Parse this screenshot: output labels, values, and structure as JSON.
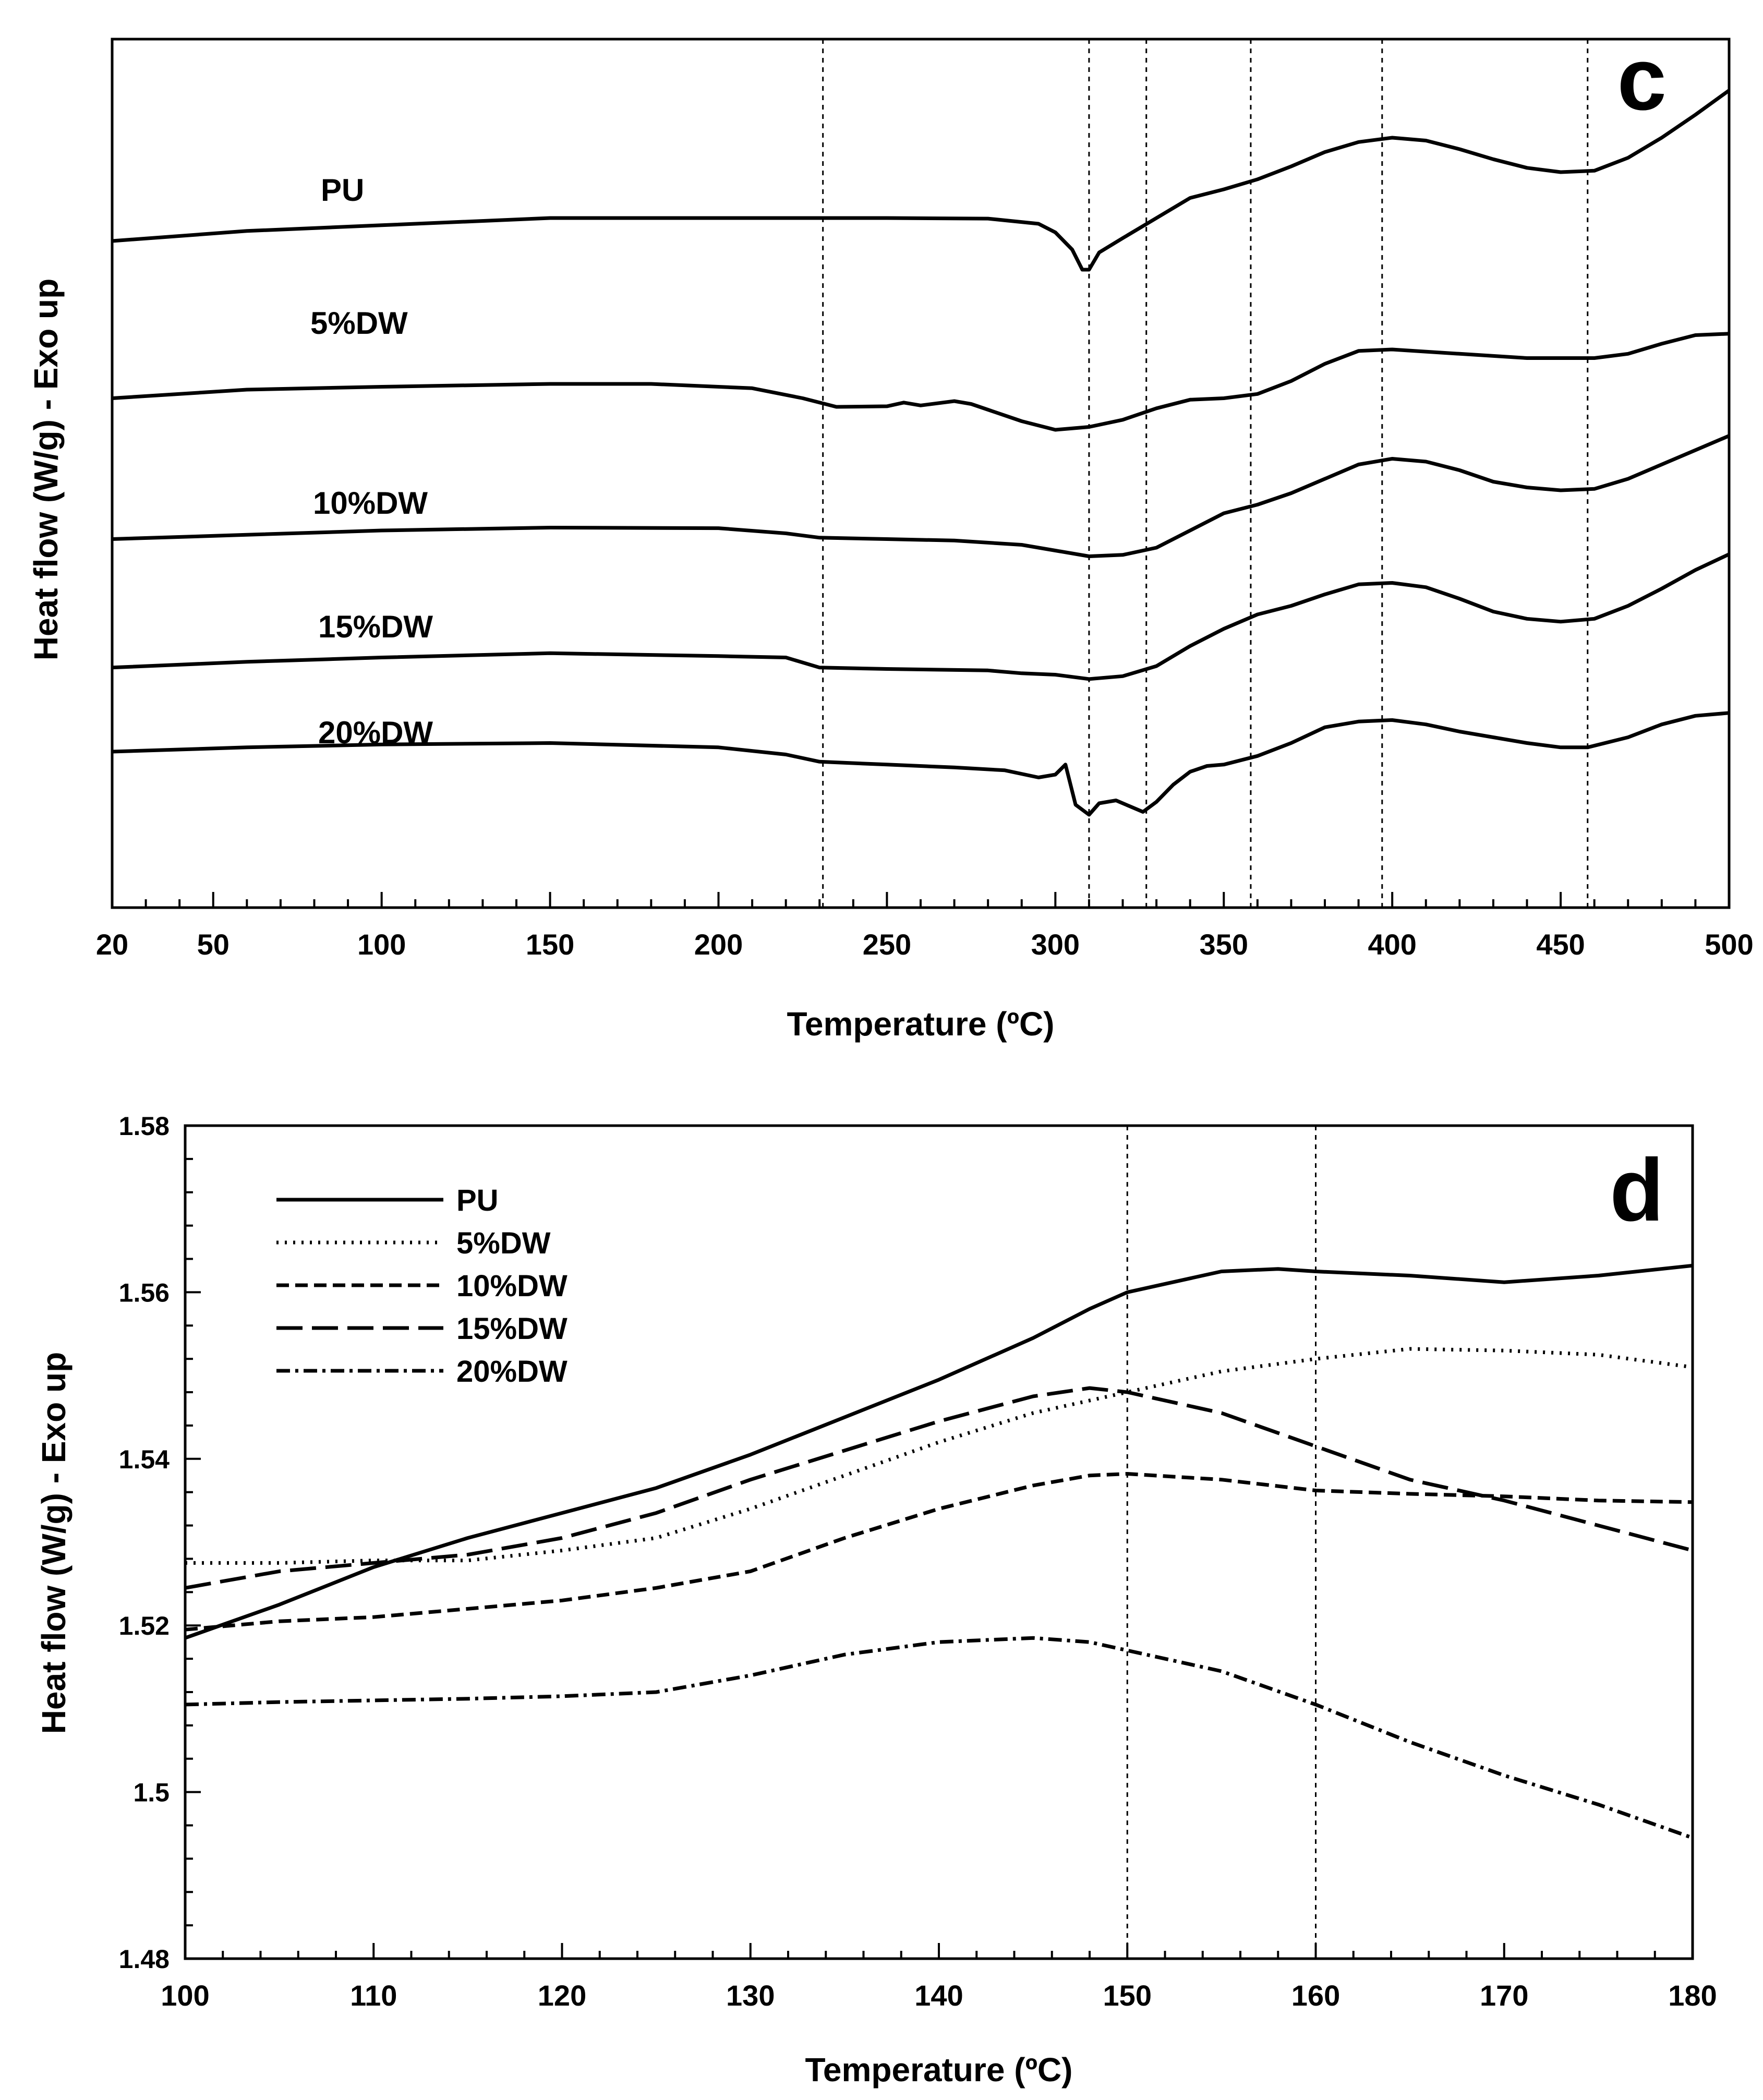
{
  "chart_data": [
    {
      "type": "line",
      "panel_label": "c",
      "xlabel": "Temperature (ºC)",
      "ylabel": "Heat flow (W/g) - Exo up",
      "xlim": [
        20,
        500
      ],
      "x_ticks": [
        20,
        50,
        100,
        150,
        200,
        250,
        300,
        350,
        400,
        450,
        500
      ],
      "y_ticks_labeled": false,
      "reference_lines_x": [
        231,
        310,
        327,
        358,
        397,
        458
      ],
      "series": [
        {
          "name": "PU",
          "curve_label": "PU",
          "style": "solid",
          "points": [
            [
              20,
              0.6
            ],
            [
              60,
              0.95
            ],
            [
              100,
              1.15
            ],
            [
              150,
              1.4
            ],
            [
              200,
              1.4
            ],
            [
              250,
              1.4
            ],
            [
              280,
              1.38
            ],
            [
              295,
              1.2
            ],
            [
              300,
              0.9
            ],
            [
              305,
              0.3
            ],
            [
              308,
              -0.4
            ],
            [
              310,
              -0.4
            ],
            [
              313,
              0.2
            ],
            [
              320,
              0.7
            ],
            [
              330,
              1.4
            ],
            [
              340,
              2.1
            ],
            [
              350,
              2.4
            ],
            [
              360,
              2.75
            ],
            [
              370,
              3.2
            ],
            [
              380,
              3.7
            ],
            [
              390,
              4.05
            ],
            [
              400,
              4.2
            ],
            [
              410,
              4.1
            ],
            [
              420,
              3.8
            ],
            [
              430,
              3.45
            ],
            [
              440,
              3.15
            ],
            [
              450,
              3.0
            ],
            [
              460,
              3.05
            ],
            [
              470,
              3.5
            ],
            [
              480,
              4.2
            ],
            [
              490,
              5.0
            ],
            [
              500,
              5.85
            ]
          ]
        },
        {
          "name": "5%DW",
          "curve_label": "5%DW",
          "style": "solid",
          "points": [
            [
              20,
              0.3
            ],
            [
              60,
              0.6
            ],
            [
              100,
              0.7
            ],
            [
              150,
              0.8
            ],
            [
              180,
              0.8
            ],
            [
              210,
              0.65
            ],
            [
              225,
              0.3
            ],
            [
              235,
              0.0
            ],
            [
              250,
              0.02
            ],
            [
              255,
              0.15
            ],
            [
              260,
              0.05
            ],
            [
              270,
              0.2
            ],
            [
              275,
              0.1
            ],
            [
              280,
              -0.1
            ],
            [
              290,
              -0.5
            ],
            [
              300,
              -0.8
            ],
            [
              310,
              -0.7
            ],
            [
              320,
              -0.45
            ],
            [
              330,
              -0.05
            ],
            [
              340,
              0.25
            ],
            [
              350,
              0.3
            ],
            [
              360,
              0.45
            ],
            [
              370,
              0.9
            ],
            [
              380,
              1.5
            ],
            [
              390,
              1.95
            ],
            [
              400,
              2.0
            ],
            [
              420,
              1.85
            ],
            [
              440,
              1.7
            ],
            [
              460,
              1.7
            ],
            [
              470,
              1.85
            ],
            [
              480,
              2.2
            ],
            [
              490,
              2.5
            ],
            [
              500,
              2.55
            ]
          ]
        },
        {
          "name": "10%DW",
          "curve_label": "10%DW",
          "style": "solid",
          "points": [
            [
              20,
              0.3
            ],
            [
              60,
              0.45
            ],
            [
              100,
              0.6
            ],
            [
              150,
              0.7
            ],
            [
              200,
              0.68
            ],
            [
              220,
              0.5
            ],
            [
              230,
              0.35
            ],
            [
              250,
              0.3
            ],
            [
              270,
              0.25
            ],
            [
              290,
              0.1
            ],
            [
              300,
              -0.1
            ],
            [
              310,
              -0.3
            ],
            [
              320,
              -0.25
            ],
            [
              330,
              0.0
            ],
            [
              340,
              0.6
            ],
            [
              350,
              1.2
            ],
            [
              360,
              1.5
            ],
            [
              370,
              1.9
            ],
            [
              380,
              2.4
            ],
            [
              390,
              2.9
            ],
            [
              400,
              3.1
            ],
            [
              410,
              3.0
            ],
            [
              420,
              2.7
            ],
            [
              430,
              2.3
            ],
            [
              440,
              2.1
            ],
            [
              450,
              2.0
            ],
            [
              460,
              2.05
            ],
            [
              470,
              2.4
            ],
            [
              480,
              2.9
            ],
            [
              490,
              3.4
            ],
            [
              500,
              3.9
            ]
          ]
        },
        {
          "name": "15%DW",
          "curve_label": "15%DW",
          "style": "solid",
          "points": [
            [
              20,
              0.55
            ],
            [
              60,
              0.75
            ],
            [
              100,
              0.9
            ],
            [
              150,
              1.05
            ],
            [
              200,
              0.95
            ],
            [
              220,
              0.9
            ],
            [
              230,
              0.55
            ],
            [
              250,
              0.5
            ],
            [
              280,
              0.45
            ],
            [
              290,
              0.35
            ],
            [
              300,
              0.3
            ],
            [
              310,
              0.15
            ],
            [
              320,
              0.25
            ],
            [
              330,
              0.6
            ],
            [
              340,
              1.3
            ],
            [
              350,
              1.9
            ],
            [
              360,
              2.4
            ],
            [
              370,
              2.7
            ],
            [
              380,
              3.1
            ],
            [
              390,
              3.45
            ],
            [
              400,
              3.5
            ],
            [
              410,
              3.35
            ],
            [
              420,
              2.95
            ],
            [
              430,
              2.5
            ],
            [
              440,
              2.25
            ],
            [
              450,
              2.15
            ],
            [
              460,
              2.25
            ],
            [
              470,
              2.7
            ],
            [
              480,
              3.3
            ],
            [
              490,
              3.95
            ],
            [
              500,
              4.5
            ]
          ]
        },
        {
          "name": "20%DW",
          "curve_label": "20%DW",
          "style": "solid",
          "points": [
            [
              20,
              0.8
            ],
            [
              60,
              0.95
            ],
            [
              100,
              1.05
            ],
            [
              150,
              1.1
            ],
            [
              200,
              0.95
            ],
            [
              220,
              0.7
            ],
            [
              230,
              0.45
            ],
            [
              250,
              0.35
            ],
            [
              270,
              0.25
            ],
            [
              285,
              0.15
            ],
            [
              295,
              -0.1
            ],
            [
              300,
              0.0
            ],
            [
              303,
              0.35
            ],
            [
              306,
              -1.05
            ],
            [
              310,
              -1.4
            ],
            [
              313,
              -1.0
            ],
            [
              318,
              -0.9
            ],
            [
              322,
              -1.1
            ],
            [
              326,
              -1.3
            ],
            [
              330,
              -0.95
            ],
            [
              335,
              -0.35
            ],
            [
              340,
              0.1
            ],
            [
              345,
              0.3
            ],
            [
              350,
              0.35
            ],
            [
              360,
              0.65
            ],
            [
              370,
              1.1
            ],
            [
              380,
              1.65
            ],
            [
              390,
              1.85
            ],
            [
              400,
              1.9
            ],
            [
              410,
              1.75
            ],
            [
              420,
              1.5
            ],
            [
              430,
              1.3
            ],
            [
              440,
              1.1
            ],
            [
              450,
              0.95
            ],
            [
              458,
              0.95
            ],
            [
              470,
              1.3
            ],
            [
              480,
              1.75
            ],
            [
              490,
              2.05
            ],
            [
              500,
              2.15
            ]
          ]
        }
      ]
    },
    {
      "type": "line",
      "panel_label": "d",
      "xlabel": "Temperature (ºC)",
      "ylabel": "Heat flow (W/g) - Exo up",
      "xlim": [
        100,
        180
      ],
      "ylim": [
        1.48,
        1.58
      ],
      "x_ticks": [
        100,
        110,
        120,
        130,
        140,
        150,
        160,
        170,
        180
      ],
      "y_ticks": [
        "1.48",
        "1.5",
        "1.52",
        "1.54",
        "1.56",
        "1.58"
      ],
      "reference_lines_x": [
        150,
        160
      ],
      "legend": [
        "PU",
        "5%DW",
        "10%DW",
        "15%DW",
        "20%DW"
      ],
      "series": [
        {
          "name": "PU",
          "style": "solid",
          "x": [
            100,
            105,
            110,
            115,
            120,
            125,
            130,
            135,
            140,
            145,
            148,
            150,
            155,
            158,
            160,
            165,
            170,
            175,
            180
          ],
          "values": [
            1.5185,
            1.5225,
            1.527,
            1.5305,
            1.5335,
            1.5365,
            1.5405,
            1.545,
            1.5495,
            1.5545,
            1.558,
            1.56,
            1.5625,
            1.5628,
            1.5625,
            1.562,
            1.5612,
            1.562,
            1.5632
          ]
        },
        {
          "name": "5%DW",
          "style": "dotted",
          "x": [
            100,
            105,
            110,
            115,
            120,
            125,
            130,
            135,
            140,
            145,
            150,
            155,
            160,
            165,
            170,
            175,
            180
          ],
          "values": [
            1.5275,
            1.5275,
            1.5278,
            1.5278,
            1.529,
            1.5305,
            1.534,
            1.538,
            1.542,
            1.5455,
            1.548,
            1.5505,
            1.552,
            1.5532,
            1.553,
            1.5525,
            1.551
          ]
        },
        {
          "name": "10%DW",
          "style": "dashed",
          "x": [
            100,
            105,
            110,
            115,
            120,
            125,
            130,
            135,
            140,
            145,
            148,
            150,
            155,
            160,
            165,
            170,
            175,
            180
          ],
          "values": [
            1.5195,
            1.5205,
            1.521,
            1.522,
            1.523,
            1.5245,
            1.5265,
            1.5305,
            1.534,
            1.5368,
            1.538,
            1.5382,
            1.5375,
            1.5362,
            1.5358,
            1.5355,
            1.535,
            1.5348
          ]
        },
        {
          "name": "15%DW",
          "style": "long-dash",
          "x": [
            100,
            105,
            110,
            115,
            120,
            125,
            130,
            135,
            140,
            145,
            148,
            150,
            155,
            160,
            165,
            170,
            175,
            180
          ],
          "values": [
            1.5245,
            1.5265,
            1.5275,
            1.5285,
            1.5305,
            1.5335,
            1.5375,
            1.541,
            1.5445,
            1.5475,
            1.5485,
            1.548,
            1.5455,
            1.5415,
            1.5375,
            1.535,
            1.532,
            1.529
          ]
        },
        {
          "name": "20%DW",
          "style": "dash-dot",
          "x": [
            100,
            105,
            110,
            115,
            120,
            125,
            130,
            135,
            140,
            145,
            148,
            150,
            155,
            160,
            165,
            170,
            175,
            180
          ],
          "values": [
            1.5105,
            1.5108,
            1.511,
            1.5112,
            1.5115,
            1.512,
            1.514,
            1.5165,
            1.518,
            1.5185,
            1.518,
            1.517,
            1.5145,
            1.5105,
            1.506,
            1.502,
            1.4985,
            1.4945
          ]
        }
      ]
    }
  ]
}
